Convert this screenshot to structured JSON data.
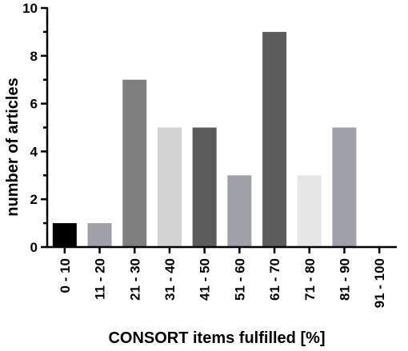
{
  "chart_data": {
    "type": "bar",
    "xlabel": "CONSORT items fulfilled [%]",
    "ylabel": "number of articles",
    "ylim": [
      0,
      10
    ],
    "yticks": [
      0,
      2,
      4,
      6,
      8,
      10
    ],
    "categories": [
      "0 - 10",
      "11 - 20",
      "21 - 30",
      "31 - 40",
      "41 - 50",
      "51 - 60",
      "61 - 70",
      "71 - 80",
      "81 - 90",
      "91 - 100"
    ],
    "values": [
      1,
      1,
      7,
      5,
      5,
      3,
      9,
      3,
      5,
      0
    ],
    "colors": [
      "#000000",
      "#a0a0a8",
      "#7f7f7f",
      "#d3d3d3",
      "#5c5c5c",
      "#a0a0a8",
      "#5c5c5c",
      "#e6e6e6",
      "#a0a0a8",
      "#a0a0a8"
    ],
    "grid": false,
    "legend": "none"
  }
}
